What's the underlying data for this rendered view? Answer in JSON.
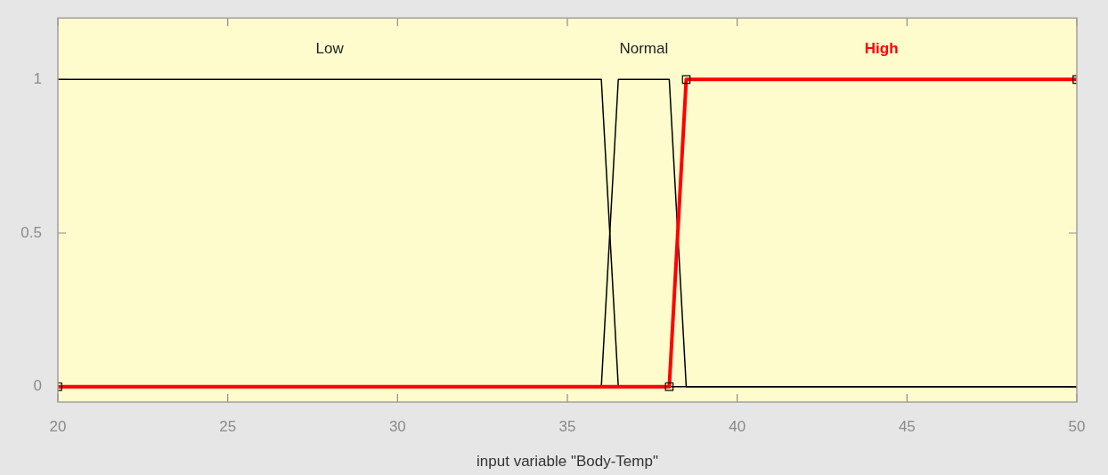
{
  "chart_data": {
    "type": "line",
    "xlabel": "input variable \"Body-Temp\"",
    "xlim": [
      20,
      50
    ],
    "xticks": [
      20,
      25,
      30,
      35,
      40,
      45,
      50
    ],
    "ylim": [
      -0.05,
      1.2
    ],
    "yticks": [
      0,
      0.5,
      1
    ],
    "grid": false,
    "legend": false,
    "series": [
      {
        "name": "Low",
        "color": "#000000",
        "x": [
          20,
          36,
          36.5,
          50
        ],
        "values": [
          1,
          1,
          0,
          0
        ]
      },
      {
        "name": "Normal",
        "color": "#000000",
        "x": [
          20,
          36,
          36.5,
          38,
          38.5,
          50
        ],
        "values": [
          0,
          0,
          1,
          1,
          0,
          0
        ]
      },
      {
        "name": "High",
        "color": "#ff0000",
        "marker": "square",
        "x": [
          20,
          38,
          38.5,
          50
        ],
        "values": [
          0,
          0,
          1,
          1
        ]
      }
    ]
  }
}
